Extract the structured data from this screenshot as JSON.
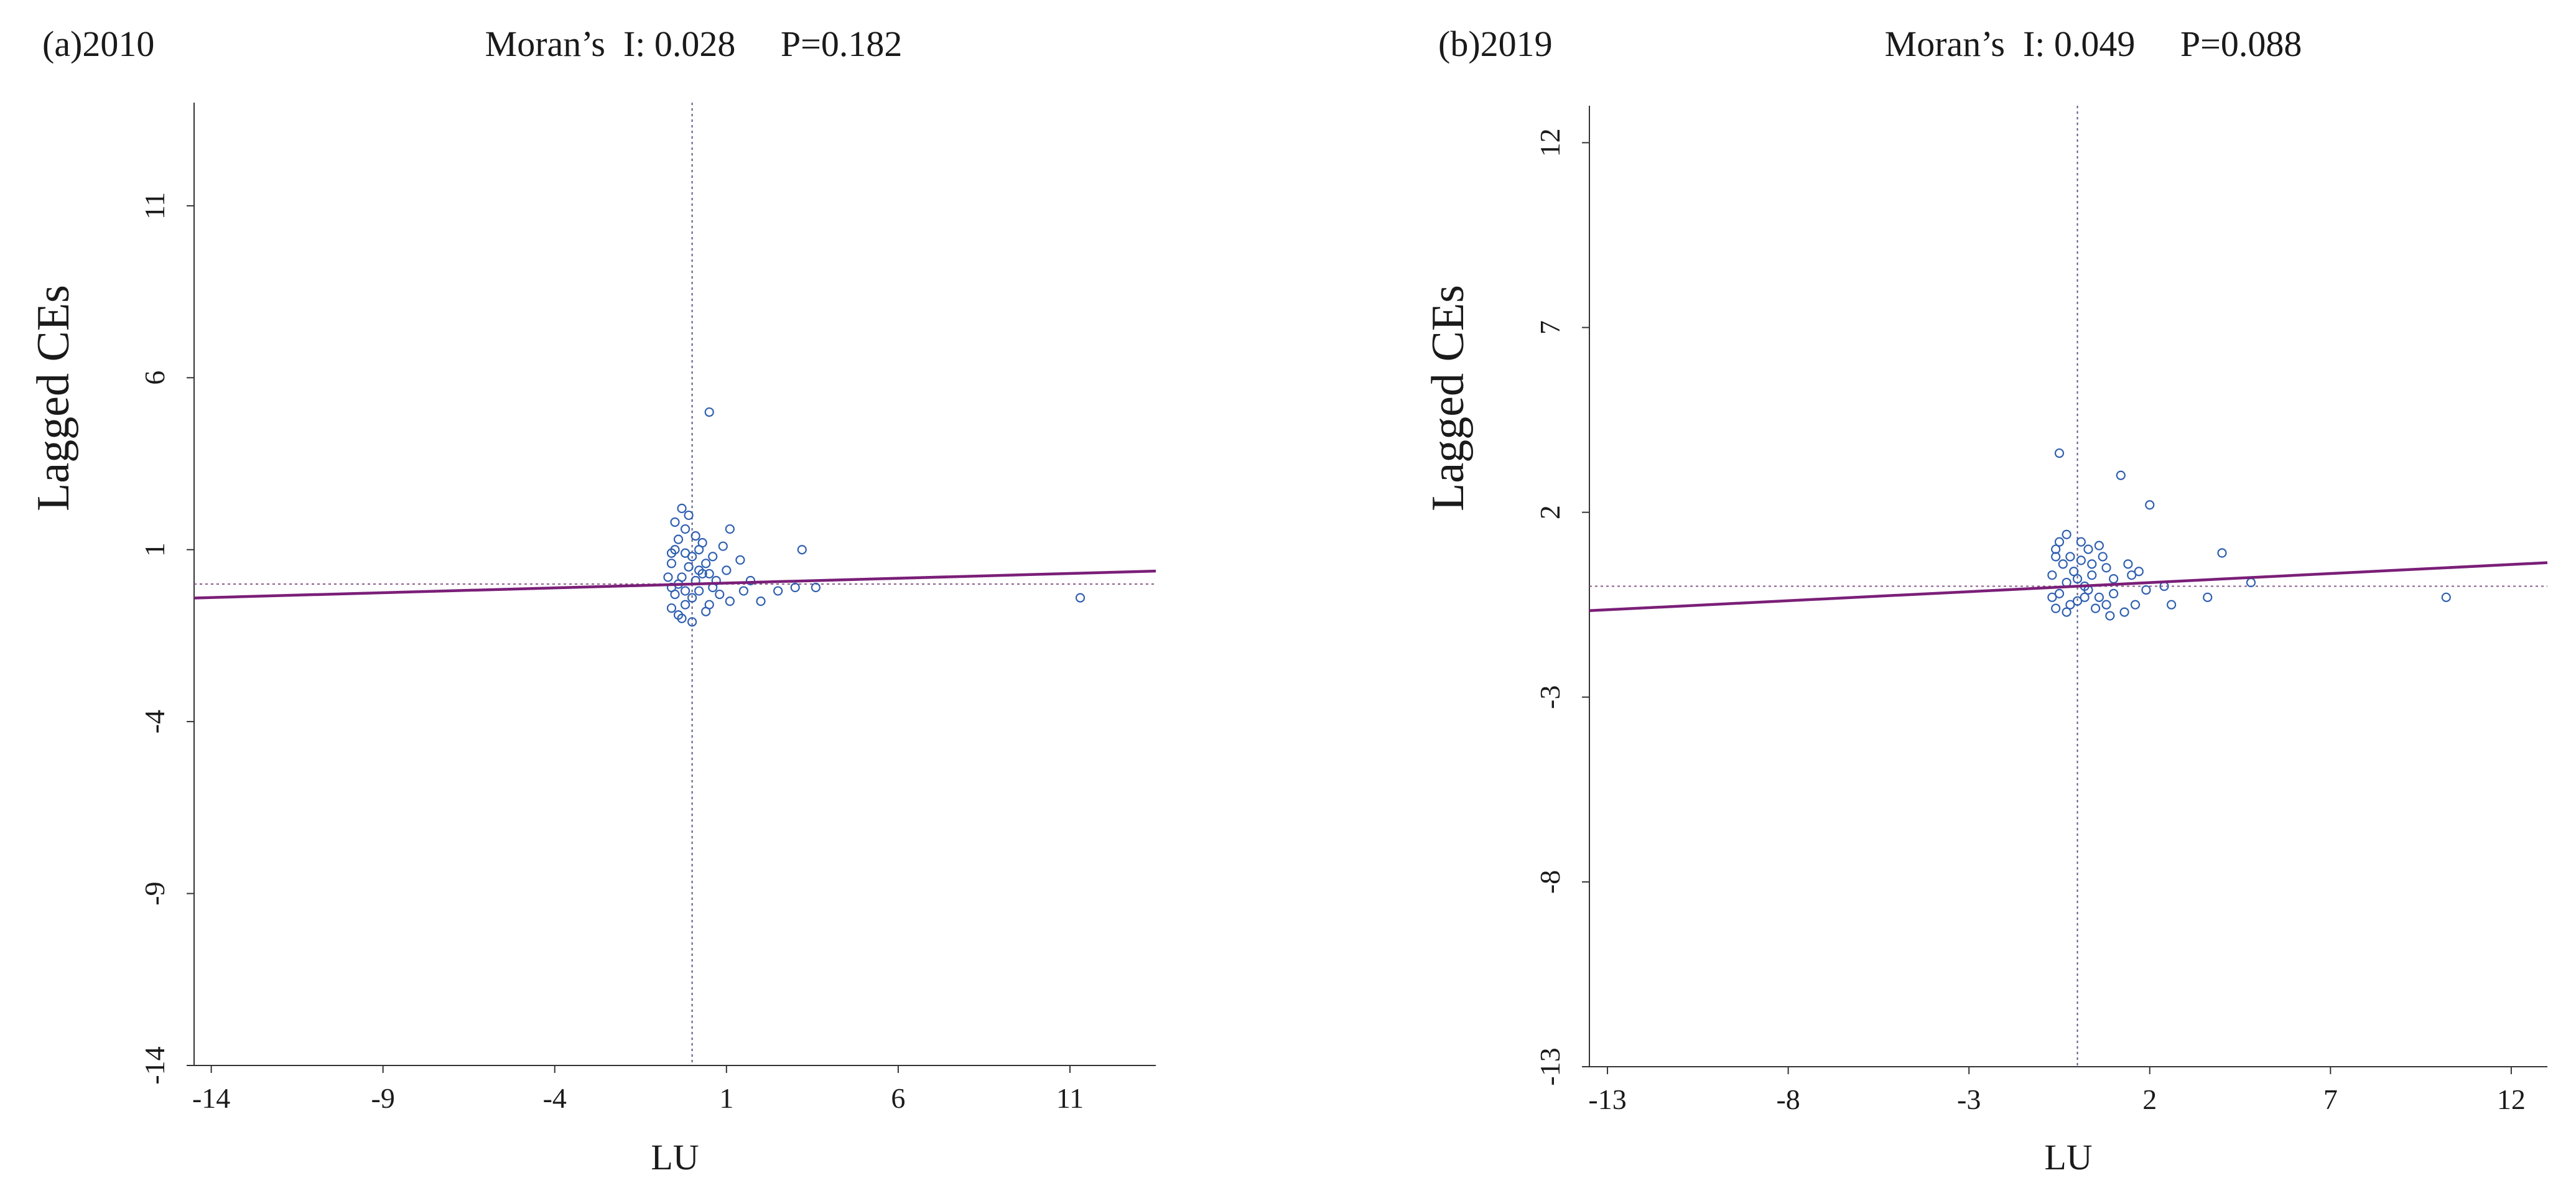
{
  "chart_data": [
    {
      "type": "scatter",
      "panel_label": "(a)2010",
      "title": "Moran’s  I: 0.028     P=0.182",
      "xlabel": "LU",
      "ylabel": "Lagged CEs",
      "xlim": [
        -14.5,
        13.5
      ],
      "ylim": [
        -14,
        14
      ],
      "xticks": [
        -14,
        -9,
        -4,
        1,
        6,
        11
      ],
      "yticks": [
        -14,
        -9,
        -4,
        1,
        6,
        11
      ],
      "mean_x": 0,
      "mean_y": 0,
      "regression": {
        "slope": 0.028,
        "intercept": 0
      },
      "points": [
        [
          0.5,
          5.0
        ],
        [
          -0.3,
          2.2
        ],
        [
          -0.1,
          2.0
        ],
        [
          -0.2,
          1.6
        ],
        [
          -0.4,
          1.3
        ],
        [
          0.3,
          1.2
        ],
        [
          1.1,
          1.6
        ],
        [
          -0.5,
          1.0
        ],
        [
          -0.2,
          0.9
        ],
        [
          0.4,
          0.6
        ],
        [
          0.6,
          0.8
        ],
        [
          1.0,
          0.4
        ],
        [
          1.5,
          -0.2
        ],
        [
          2.0,
          -0.5
        ],
        [
          3.2,
          1.0
        ],
        [
          3.0,
          -0.1
        ],
        [
          3.6,
          -0.1
        ],
        [
          1.4,
          0.7
        ],
        [
          -0.6,
          0.6
        ],
        [
          -0.7,
          0.2
        ],
        [
          -0.5,
          -0.3
        ],
        [
          -0.6,
          -0.7
        ],
        [
          -0.4,
          -0.9
        ],
        [
          -0.2,
          -0.6
        ],
        [
          0.0,
          -0.4
        ],
        [
          0.2,
          -0.2
        ],
        [
          0.5,
          -0.6
        ],
        [
          0.8,
          -0.3
        ],
        [
          1.1,
          -0.5
        ],
        [
          -0.3,
          0.2
        ],
        [
          -0.1,
          0.5
        ],
        [
          0.1,
          0.1
        ],
        [
          0.3,
          0.3
        ],
        [
          0.7,
          0.1
        ],
        [
          -0.6,
          -0.1
        ],
        [
          -0.2,
          -0.2
        ],
        [
          0.0,
          0.8
        ],
        [
          0.2,
          1.0
        ],
        [
          0.4,
          -0.8
        ],
        [
          11.3,
          -0.4
        ],
        [
          -0.5,
          1.8
        ],
        [
          0.1,
          1.4
        ],
        [
          0.9,
          1.1
        ],
        [
          0.6,
          -0.1
        ],
        [
          -0.3,
          -1.0
        ],
        [
          0.0,
          -1.1
        ],
        [
          2.5,
          -0.2
        ],
        [
          1.7,
          0.1
        ],
        [
          -0.6,
          0.9
        ],
        [
          0.2,
          0.4
        ],
        [
          -0.4,
          0.0
        ],
        [
          0.5,
          0.3
        ]
      ]
    },
    {
      "type": "scatter",
      "panel_label": "(b)2019",
      "title": "Moran’s  I: 0.049     P=0.088",
      "xlabel": "LU",
      "ylabel": "Lagged CEs",
      "xlim": [
        -13.5,
        13
      ],
      "ylim": [
        -13,
        13
      ],
      "xticks": [
        -13,
        -8,
        -3,
        2,
        7,
        12
      ],
      "yticks": [
        -13,
        -8,
        -3,
        2,
        7,
        12
      ],
      "mean_x": 0,
      "mean_y": 0,
      "regression": {
        "slope": 0.049,
        "intercept": 0
      },
      "points": [
        [
          -0.5,
          3.6
        ],
        [
          1.2,
          3.0
        ],
        [
          2.0,
          2.2
        ],
        [
          -0.3,
          1.4
        ],
        [
          0.1,
          1.2
        ],
        [
          0.6,
          1.1
        ],
        [
          -0.6,
          1.0
        ],
        [
          -0.2,
          0.8
        ],
        [
          0.4,
          0.6
        ],
        [
          0.8,
          0.5
        ],
        [
          1.5,
          0.3
        ],
        [
          1.0,
          -0.2
        ],
        [
          1.6,
          -0.5
        ],
        [
          2.4,
          0.0
        ],
        [
          2.6,
          -0.5
        ],
        [
          3.6,
          -0.3
        ],
        [
          4.0,
          0.9
        ],
        [
          4.8,
          0.1
        ],
        [
          10.2,
          -0.3
        ],
        [
          -0.7,
          0.3
        ],
        [
          -0.5,
          -0.2
        ],
        [
          -0.6,
          -0.6
        ],
        [
          -0.3,
          -0.7
        ],
        [
          0.0,
          -0.4
        ],
        [
          0.3,
          -0.1
        ],
        [
          0.6,
          -0.3
        ],
        [
          1.0,
          0.2
        ],
        [
          -0.1,
          0.4
        ],
        [
          0.2,
          0.0
        ],
        [
          -0.4,
          0.6
        ],
        [
          0.5,
          -0.6
        ],
        [
          0.9,
          -0.8
        ],
        [
          1.3,
          -0.7
        ],
        [
          -0.7,
          -0.3
        ],
        [
          -0.2,
          -0.5
        ],
        [
          0.1,
          0.7
        ],
        [
          0.3,
          1.0
        ],
        [
          0.7,
          0.8
        ],
        [
          1.4,
          0.6
        ],
        [
          -0.5,
          1.2
        ],
        [
          1.9,
          -0.1
        ],
        [
          0.0,
          0.2
        ],
        [
          -0.3,
          0.1
        ],
        [
          0.4,
          0.3
        ],
        [
          1.7,
          0.4
        ],
        [
          -0.6,
          0.8
        ],
        [
          0.2,
          -0.3
        ],
        [
          0.8,
          -0.5
        ]
      ]
    }
  ]
}
